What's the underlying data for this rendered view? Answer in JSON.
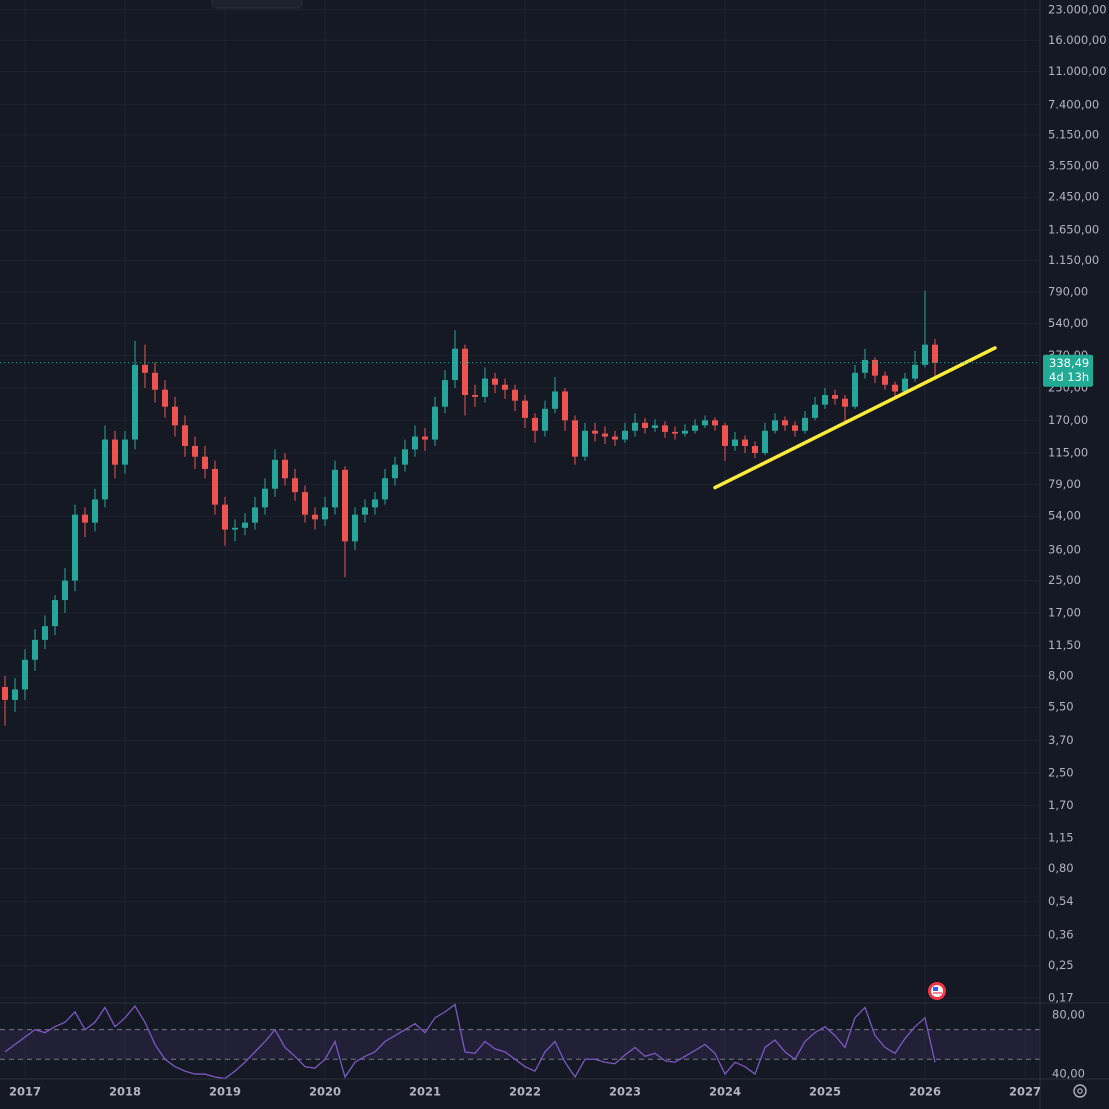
{
  "chart_data": {
    "type": "candlestick",
    "x": [
      2016.8,
      2016.9,
      2017.0,
      2017.1,
      2017.2,
      2017.3,
      2017.4,
      2017.5,
      2017.6,
      2017.7,
      2017.8,
      2017.9,
      2018.0,
      2018.1,
      2018.2,
      2018.3,
      2018.4,
      2018.5,
      2018.6,
      2018.7,
      2018.8,
      2018.9,
      2019.0,
      2019.1,
      2019.2,
      2019.3,
      2019.4,
      2019.5,
      2019.6,
      2019.7,
      2019.8,
      2019.9,
      2020.0,
      2020.1,
      2020.2,
      2020.3,
      2020.4,
      2020.5,
      2020.6,
      2020.7,
      2020.8,
      2020.9,
      2021.0,
      2021.1,
      2021.2,
      2021.3,
      2021.4,
      2021.5,
      2021.6,
      2021.7,
      2021.8,
      2021.9,
      2022.0,
      2022.1,
      2022.2,
      2022.3,
      2022.4,
      2022.5,
      2022.6,
      2022.7,
      2022.8,
      2022.9,
      2023.0,
      2023.1,
      2023.2,
      2023.3,
      2023.4,
      2023.5,
      2023.6,
      2023.7,
      2023.8,
      2023.9,
      2024.0,
      2024.1,
      2024.2,
      2024.3,
      2024.4,
      2024.5,
      2024.6,
      2024.7,
      2024.8,
      2024.9,
      2025.0,
      2025.1,
      2025.2,
      2025.3,
      2025.4,
      2025.5,
      2025.6,
      2025.7,
      2025.8,
      2025.9,
      2026.0,
      2026.1
    ],
    "open": [
      7.0,
      6.0,
      6.8,
      9.7,
      12.3,
      14.5,
      19.8,
      25,
      55,
      50,
      66,
      135,
      100,
      135,
      330,
      300,
      245,
      200,
      160,
      125,
      110,
      95,
      62,
      46,
      47,
      50,
      60,
      75,
      106,
      85,
      72,
      55,
      52,
      60,
      94,
      40,
      55,
      60,
      66,
      85,
      100,
      120,
      140,
      135,
      200,
      275,
      400,
      230,
      225,
      280,
      260,
      245,
      215,
      175,
      150,
      195,
      240,
      170,
      110,
      150,
      145,
      140,
      135,
      150,
      165,
      155,
      160,
      148,
      145,
      150,
      160,
      170,
      160,
      125,
      135,
      125,
      115,
      150,
      170,
      160,
      150,
      175,
      205,
      230,
      220,
      200,
      300,
      350,
      290,
      260,
      240,
      280,
      330,
      420
    ],
    "high": [
      8.0,
      7.8,
      11,
      14,
      16.5,
      21,
      29,
      62,
      60,
      75,
      160,
      150,
      150,
      440,
      420,
      340,
      275,
      225,
      180,
      140,
      125,
      105,
      68,
      52,
      56,
      68,
      85,
      120,
      115,
      95,
      78,
      60,
      68,
      105,
      98,
      60,
      66,
      72,
      95,
      110,
      135,
      160,
      155,
      225,
      310,
      500,
      420,
      260,
      320,
      300,
      280,
      260,
      230,
      185,
      215,
      285,
      250,
      180,
      165,
      165,
      158,
      150,
      165,
      185,
      175,
      172,
      168,
      158,
      162,
      172,
      180,
      176,
      165,
      148,
      142,
      132,
      165,
      185,
      178,
      168,
      190,
      225,
      250,
      245,
      230,
      330,
      400,
      360,
      305,
      270,
      300,
      390,
      800,
      450
    ],
    "low": [
      4.4,
      5.2,
      6.0,
      8.5,
      11,
      13,
      17,
      22,
      42,
      45,
      60,
      85,
      90,
      120,
      250,
      210,
      175,
      140,
      110,
      95,
      85,
      55,
      38,
      40,
      43,
      46,
      55,
      68,
      78,
      65,
      50,
      46,
      48,
      55,
      26,
      36,
      50,
      55,
      62,
      78,
      92,
      110,
      118,
      125,
      185,
      250,
      180,
      200,
      210,
      235,
      220,
      190,
      155,
      130,
      140,
      185,
      150,
      100,
      105,
      132,
      128,
      125,
      130,
      140,
      145,
      148,
      138,
      135,
      140,
      145,
      155,
      150,
      105,
      118,
      115,
      108,
      112,
      145,
      150,
      140,
      145,
      170,
      195,
      205,
      165,
      195,
      280,
      265,
      245,
      220,
      230,
      270,
      320,
      275
    ],
    "close": [
      6.0,
      6.8,
      9.7,
      12.3,
      14.5,
      19.8,
      25,
      55,
      50,
      66,
      135,
      100,
      135,
      330,
      300,
      245,
      200,
      160,
      125,
      110,
      95,
      62,
      46,
      47,
      50,
      60,
      75,
      106,
      85,
      72,
      55,
      52,
      60,
      94,
      40,
      55,
      60,
      66,
      85,
      100,
      120,
      140,
      135,
      200,
      275,
      400,
      230,
      225,
      280,
      260,
      245,
      215,
      175,
      150,
      195,
      240,
      170,
      110,
      150,
      145,
      140,
      135,
      150,
      165,
      155,
      160,
      148,
      145,
      150,
      160,
      170,
      160,
      125,
      135,
      125,
      115,
      150,
      170,
      160,
      150,
      175,
      205,
      230,
      220,
      200,
      300,
      350,
      290,
      260,
      240,
      280,
      330,
      420,
      338.49
    ],
    "up_color": "#26a69a",
    "down_color": "#ef5350",
    "xlim": [
      2016.75,
      2027.15
    ],
    "xticks": [
      2017,
      2018,
      2019,
      2020,
      2021,
      2022,
      2023,
      2024,
      2025,
      2026,
      2027
    ],
    "ylim": [
      0.16,
      25900
    ],
    "log_scale": true,
    "grid": true,
    "yticks": [
      {
        "value": 23000,
        "label": "23.000,00"
      },
      {
        "value": 16000,
        "label": "16.000,00"
      },
      {
        "value": 11000,
        "label": "11.000,00"
      },
      {
        "value": 7400,
        "label": "7.400,00"
      },
      {
        "value": 5150,
        "label": "5.150,00"
      },
      {
        "value": 3550,
        "label": "3.550,00"
      },
      {
        "value": 2450,
        "label": "2.450,00"
      },
      {
        "value": 1650,
        "label": "1.650,00"
      },
      {
        "value": 1150,
        "label": "1.150,00"
      },
      {
        "value": 790,
        "label": "790,00"
      },
      {
        "value": 540,
        "label": "540,00"
      },
      {
        "value": 370,
        "label": "370,00"
      },
      {
        "value": 250,
        "label": "250,00"
      },
      {
        "value": 170,
        "label": "170,00"
      },
      {
        "value": 115,
        "label": "115,00"
      },
      {
        "value": 79,
        "label": "79,00"
      },
      {
        "value": 54,
        "label": "54,00"
      },
      {
        "value": 36,
        "label": "36,00"
      },
      {
        "value": 25,
        "label": "25,00"
      },
      {
        "value": 17,
        "label": "17,00"
      },
      {
        "value": 11.5,
        "label": "11,50"
      },
      {
        "value": 8,
        "label": "8,00"
      },
      {
        "value": 5.5,
        "label": "5,50"
      },
      {
        "value": 3.7,
        "label": "3,70"
      },
      {
        "value": 2.5,
        "label": "2,50"
      },
      {
        "value": 1.7,
        "label": "1,70"
      },
      {
        "value": 1.15,
        "label": "1,15"
      },
      {
        "value": 0.8,
        "label": "0,80"
      },
      {
        "value": 0.54,
        "label": "0,54"
      },
      {
        "value": 0.36,
        "label": "0,36"
      },
      {
        "value": 0.25,
        "label": "0,25"
      },
      {
        "value": 0.17,
        "label": "0,17"
      }
    ],
    "last_price": {
      "value": 338.49,
      "label": "338,49",
      "countdown": "4d 13h",
      "color": "#22ab94"
    },
    "trendline": {
      "x": [
        2023.9,
        2026.7
      ],
      "y": [
        76,
        404
      ],
      "color": "#ffeb3b"
    },
    "rsi": {
      "values": [
        55,
        60,
        65,
        70,
        68,
        72,
        75,
        82,
        70,
        75,
        85,
        72,
        78,
        86,
        75,
        60,
        50,
        45,
        42,
        40,
        40,
        38,
        37,
        42,
        48,
        55,
        62,
        70,
        58,
        52,
        45,
        44,
        50,
        62,
        38,
        48,
        52,
        55,
        62,
        66,
        70,
        74,
        68,
        78,
        82,
        87,
        55,
        54,
        62,
        57,
        55,
        50,
        45,
        42,
        55,
        62,
        48,
        38,
        50,
        50,
        48,
        47,
        53,
        58,
        52,
        54,
        49,
        48,
        52,
        56,
        60,
        54,
        40,
        48,
        45,
        40,
        58,
        63,
        55,
        50,
        62,
        68,
        72,
        66,
        58,
        78,
        85,
        66,
        58,
        54,
        64,
        72,
        78,
        48
      ],
      "color": "#7e57c2",
      "ylim": [
        36,
        88
      ],
      "bands": [
        70,
        50
      ],
      "yticks": [
        {
          "value": 80,
          "label": "80,00"
        },
        {
          "value": 40,
          "label": "40,00"
        }
      ]
    }
  }
}
